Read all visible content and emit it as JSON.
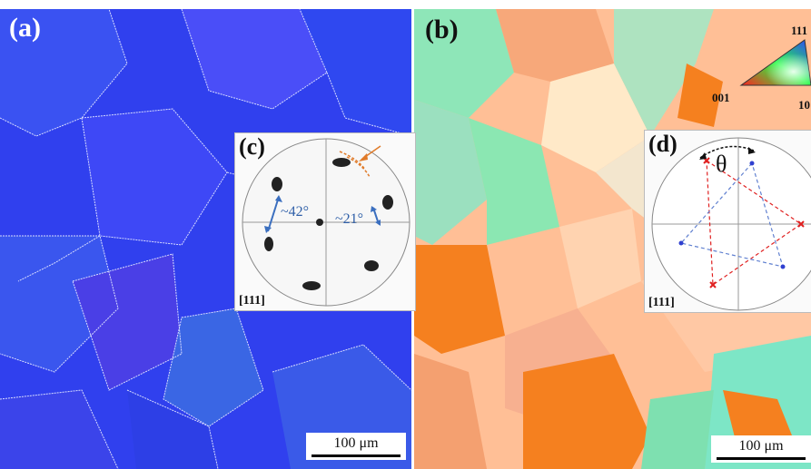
{
  "panel_a": {
    "label": "(a)",
    "scalebar": "100 μm"
  },
  "panel_b": {
    "label": "(b)",
    "scalebar": "100 μm",
    "ipf_key": {
      "corner_111": "111",
      "corner_001": "001",
      "corner_101": "10"
    }
  },
  "inset_c": {
    "label": "(c)",
    "direction": "[111]",
    "angle_large": "~42°",
    "angle_small": "~21°"
  },
  "inset_d": {
    "label": "(d)",
    "direction": "[111]",
    "angle_symbol": "θ"
  },
  "colors": {
    "grain_blue": "#2f3ff0",
    "grain_orange": "#f5801f",
    "grain_peach": "#ffb98c",
    "grain_green": "#7de6b4",
    "arrow_orange": "#e07b2a",
    "arrow_blue": "#3b6fbf",
    "triangle_red": "#e02020",
    "triangle_blue": "#3040d0"
  }
}
